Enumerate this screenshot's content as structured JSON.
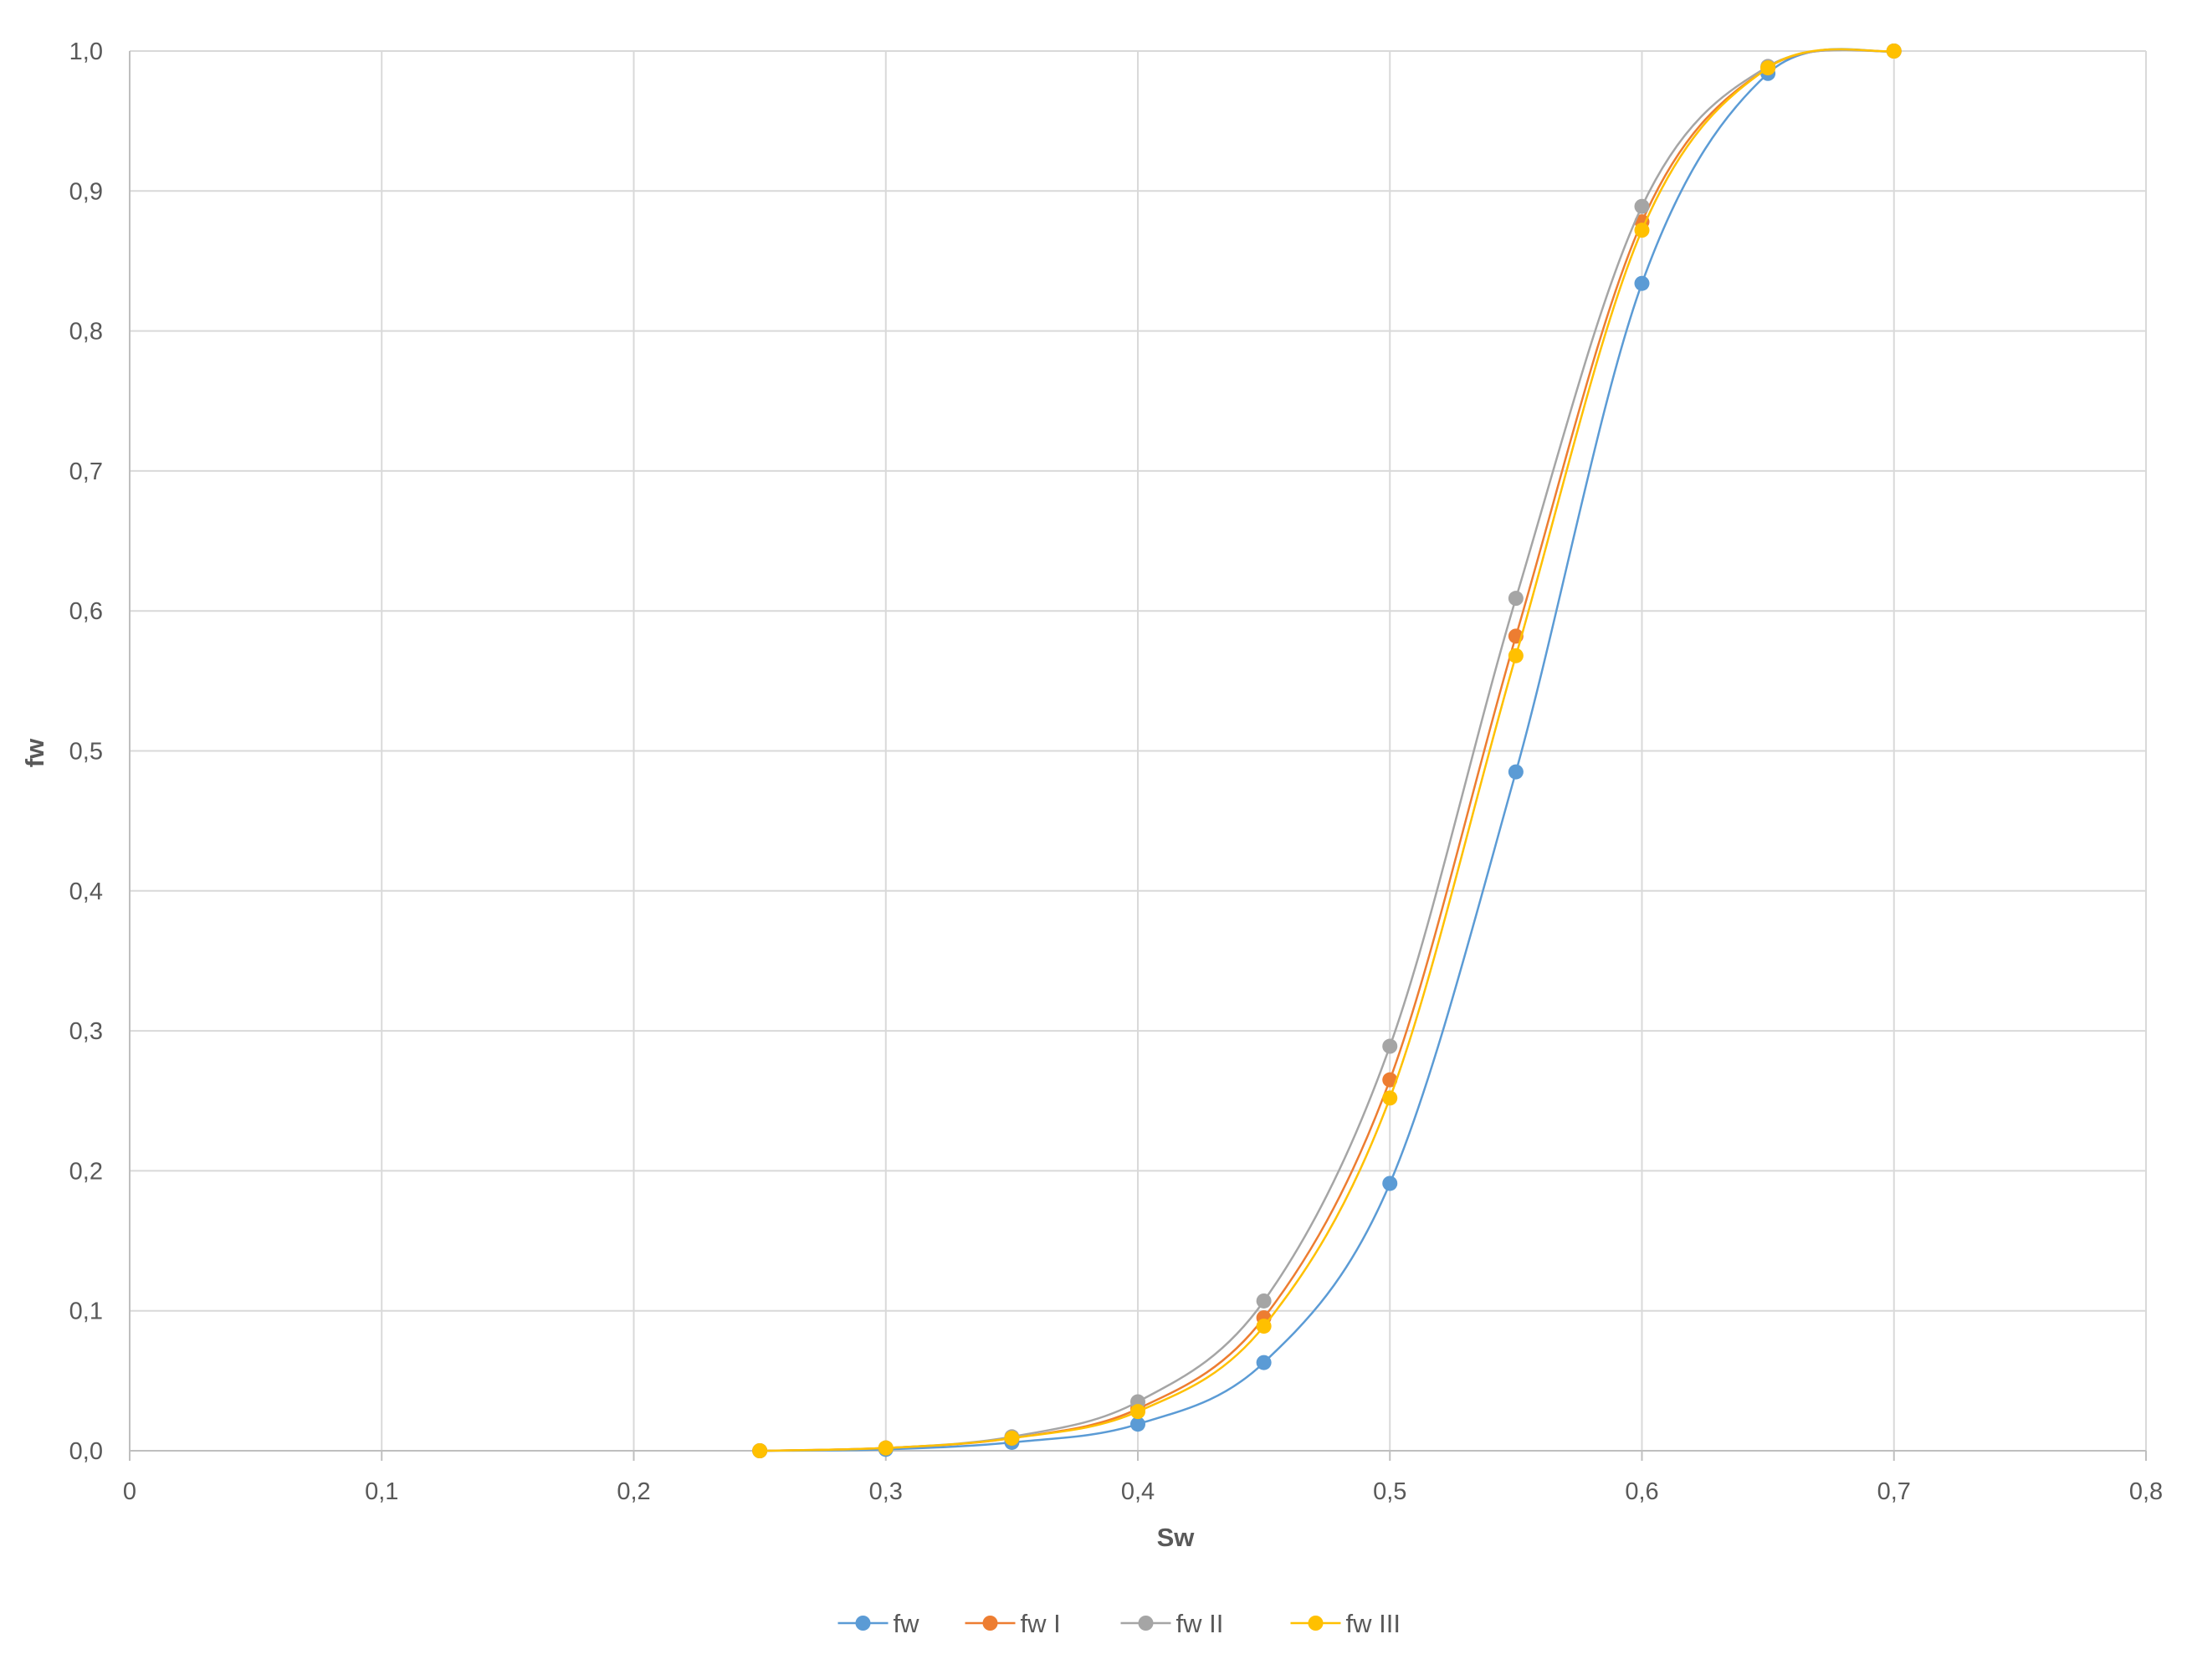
{
  "chart_data": {
    "type": "line",
    "xlabel": "Sw",
    "ylabel": "fw",
    "xlim": [
      0,
      0.8
    ],
    "ylim": [
      0,
      1.0
    ],
    "x_ticks": [
      {
        "value": 0,
        "label": "0"
      },
      {
        "value": 0.1,
        "label": "0,1"
      },
      {
        "value": 0.2,
        "label": "0,2"
      },
      {
        "value": 0.3,
        "label": "0,3"
      },
      {
        "value": 0.4,
        "label": "0,4"
      },
      {
        "value": 0.5,
        "label": "0,5"
      },
      {
        "value": 0.6,
        "label": "0,6"
      },
      {
        "value": 0.7,
        "label": "0,7"
      },
      {
        "value": 0.8,
        "label": "0,8"
      }
    ],
    "y_ticks": [
      {
        "value": 0,
        "label": "0,0"
      },
      {
        "value": 0.1,
        "label": "0,1"
      },
      {
        "value": 0.2,
        "label": "0,2"
      },
      {
        "value": 0.3,
        "label": "0,3"
      },
      {
        "value": 0.4,
        "label": "0,4"
      },
      {
        "value": 0.5,
        "label": "0,5"
      },
      {
        "value": 0.6,
        "label": "0,6"
      },
      {
        "value": 0.7,
        "label": "0,7"
      },
      {
        "value": 0.8,
        "label": "0,8"
      },
      {
        "value": 0.9,
        "label": "0,9"
      },
      {
        "value": 1.0,
        "label": "1,0"
      }
    ],
    "grid": true,
    "legend_position": "bottom",
    "x": [
      0.25,
      0.3,
      0.35,
      0.4,
      0.45,
      0.5,
      0.55,
      0.6,
      0.65,
      0.7
    ],
    "series": [
      {
        "name": "fw",
        "color": "#5b9bd5",
        "values": [
          0.0,
          0.001,
          0.006,
          0.019,
          0.063,
          0.191,
          0.485,
          0.834,
          0.984,
          1.0
        ]
      },
      {
        "name": "fw I",
        "color": "#ed7d31",
        "values": [
          0.0,
          0.002,
          0.009,
          0.03,
          0.095,
          0.265,
          0.582,
          0.878,
          0.988,
          1.0
        ]
      },
      {
        "name": "fw II",
        "color": "#a5a5a5",
        "values": [
          0.0,
          0.002,
          0.01,
          0.035,
          0.107,
          0.289,
          0.609,
          0.889,
          0.989,
          1.0
        ]
      },
      {
        "name": "fw III",
        "color": "#ffc000",
        "values": [
          0.0,
          0.002,
          0.009,
          0.028,
          0.089,
          0.252,
          0.568,
          0.872,
          0.988,
          1.0
        ]
      }
    ]
  }
}
